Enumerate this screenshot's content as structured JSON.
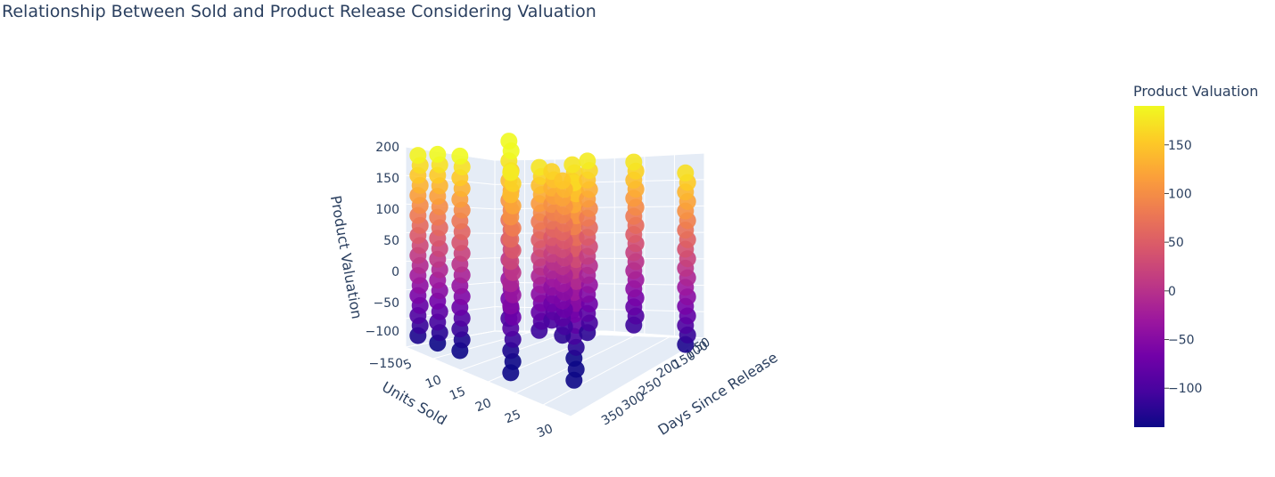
{
  "chart_data": {
    "type": "scatter3d",
    "title": "Relationship Between Sold and Product Release Considering Valuation",
    "x_axis": {
      "label": "Units Sold",
      "ticks": [
        "5",
        "10",
        "15",
        "20",
        "25",
        "30"
      ]
    },
    "y_axis": {
      "label": "Days Since Release",
      "ticks": [
        "50",
        "100",
        "150",
        "200",
        "250",
        "300",
        "350"
      ]
    },
    "z_axis": {
      "label": "Product Valuation",
      "ticks": [
        "200",
        "150",
        "100",
        "50",
        "0",
        "−50",
        "−100",
        "−150"
      ],
      "range": [
        -150,
        200
      ]
    },
    "colorbar": {
      "title": "Product Valuation",
      "ticks": [
        "150",
        "100",
        "50",
        "0",
        "−50",
        "−100"
      ],
      "range": [
        -140,
        190
      ],
      "colorscale": [
        "#0d0887",
        "#46039f",
        "#7201a8",
        "#9c179e",
        "#bd3786",
        "#d8576b",
        "#ed7953",
        "#fb9f3a",
        "#fdca26",
        "#f0f921"
      ]
    },
    "series": [
      {
        "units_sold": 4,
        "z_min": -130,
        "z_max": 185
      },
      {
        "units_sold": 9,
        "z_min": -140,
        "z_max": 190
      },
      {
        "units_sold": 14,
        "z_min": -150,
        "z_max": 190
      },
      {
        "units_sold": 21,
        "z_min": -100,
        "z_max": 210
      },
      {
        "units_sold": 22,
        "z_min": -170,
        "z_max": 180
      },
      {
        "units_sold": 27,
        "z_min": -110,
        "z_max": 175
      },
      {
        "units_sold": 27,
        "z_min": -100,
        "z_max": 160
      },
      {
        "units_sold": 29,
        "z_min": -80,
        "z_max": 175
      },
      {
        "units_sold": 30,
        "z_min": -180,
        "z_max": 165
      },
      {
        "units_sold": 31,
        "z_min": -120,
        "z_max": 180
      },
      {
        "units_sold": 30,
        "z_min": -110,
        "z_max": 175
      },
      {
        "units_sold": 33,
        "z_min": -130,
        "z_max": 170
      },
      {
        "units_sold": 28,
        "z_min": -120,
        "z_max": 150
      }
    ]
  }
}
